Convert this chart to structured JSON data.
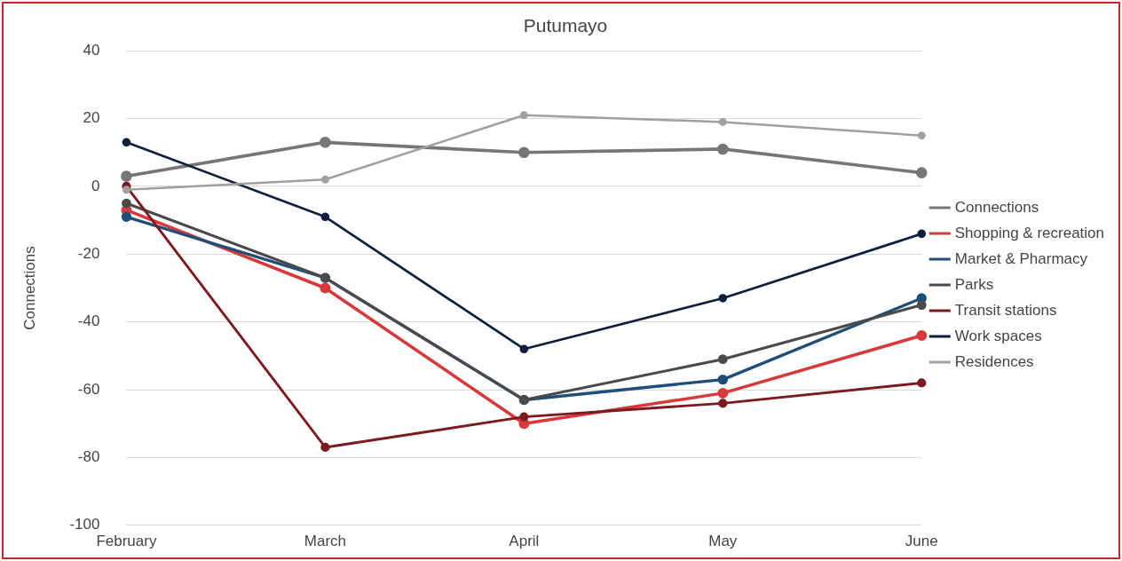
{
  "chart_data": {
    "type": "line",
    "title": "Putumayo",
    "ylabel": "Connections",
    "categories": [
      "February",
      "March",
      "April",
      "May",
      "June"
    ],
    "series": [
      {
        "name": "Connections",
        "color": "#767676",
        "values": [
          3,
          13,
          10,
          11,
          4
        ]
      },
      {
        "name": "Shopping & recreation",
        "color": "#d9383a",
        "values": [
          -7,
          -30,
          -70,
          -61,
          -44
        ]
      },
      {
        "name": "Market & Pharmacy",
        "color": "#1f4e79",
        "values": [
          -9,
          -27,
          -63,
          -57,
          -33
        ]
      },
      {
        "name": "Parks",
        "color": "#4a4a4a",
        "values": [
          -5,
          -27,
          -63,
          -51,
          -35
        ]
      },
      {
        "name": "Transit stations",
        "color": "#7b1a1f",
        "values": [
          0,
          -77,
          -68,
          -64,
          -58
        ]
      },
      {
        "name": "Work spaces",
        "color": "#0d1f3c",
        "values": [
          13,
          -9,
          -48,
          -33,
          -14
        ]
      },
      {
        "name": "Residences",
        "color": "#a0a0a0",
        "values": [
          -1,
          2,
          21,
          19,
          15
        ]
      }
    ],
    "ylim": [
      -100,
      40
    ],
    "yticks": [
      -100,
      -80,
      -60,
      -40,
      -20,
      0,
      20,
      40
    ],
    "grid": "y",
    "legend": "right",
    "marker": "circle",
    "line_style": "solid"
  }
}
